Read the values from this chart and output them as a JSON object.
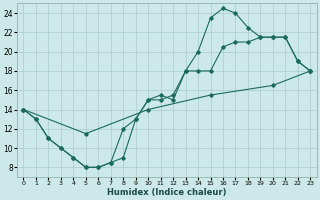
{
  "xlabel": "Humidex (Indice chaleur)",
  "bg_color": "#cce8e8",
  "grid_color": "#aacccc",
  "line_color": "#1a6b5a",
  "xlim": [
    -0.5,
    23.5
  ],
  "ylim": [
    7,
    25
  ],
  "xticks": [
    0,
    1,
    2,
    3,
    4,
    5,
    6,
    7,
    8,
    9,
    10,
    11,
    12,
    13,
    14,
    15,
    16,
    17,
    18,
    19,
    20,
    21,
    22,
    23
  ],
  "yticks": [
    8,
    10,
    12,
    14,
    16,
    18,
    20,
    22,
    24
  ],
  "line1_x": [
    0,
    1,
    2,
    3,
    4,
    5,
    6,
    7,
    8,
    9,
    10,
    11,
    12,
    13,
    14,
    15,
    16,
    17,
    18,
    19,
    20,
    21,
    22,
    23
  ],
  "line1_y": [
    14,
    13,
    11,
    10,
    9,
    8,
    8,
    8.5,
    12,
    13,
    15,
    15,
    15.5,
    18,
    18,
    18,
    20.5,
    21,
    21,
    21.5,
    21.5,
    21.5,
    19,
    18
  ],
  "line2_x": [
    0,
    1,
    2,
    3,
    4,
    5,
    6,
    7,
    8,
    9,
    10,
    11,
    12,
    13,
    14,
    15,
    16,
    17,
    18,
    19,
    20,
    21,
    22,
    23
  ],
  "line2_y": [
    14,
    13,
    11,
    10,
    9,
    8,
    8,
    8.5,
    9,
    13,
    15,
    15.5,
    15,
    18,
    20,
    23.5,
    24.5,
    24,
    22.5,
    21.5,
    21.5,
    21.5,
    19,
    18
  ],
  "line3_x": [
    0,
    5,
    10,
    15,
    20,
    23
  ],
  "line3_y": [
    14,
    11.5,
    14,
    15.5,
    16.5,
    18
  ]
}
